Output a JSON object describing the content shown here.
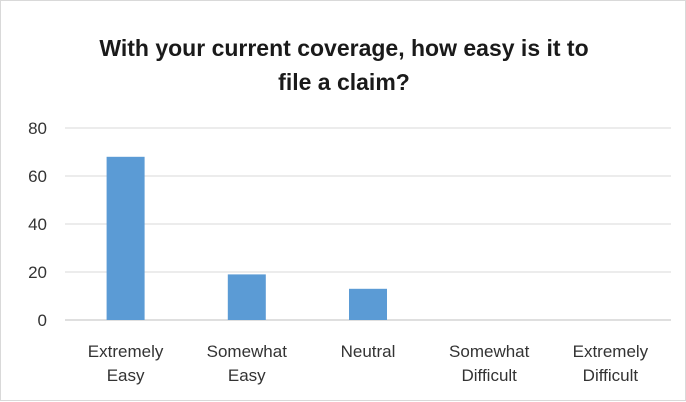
{
  "chart_data": {
    "type": "bar",
    "title": "With your current coverage, how easy is it to file a claim?",
    "xlabel": "",
    "ylabel": "",
    "categories": [
      [
        "Extremely",
        "Easy"
      ],
      [
        "Somewhat",
        "Easy"
      ],
      [
        "Neutral"
      ],
      [
        "Somewhat",
        "Difficult"
      ],
      [
        "Extremely",
        "Difficult"
      ]
    ],
    "values": [
      68,
      19,
      13,
      0,
      0
    ],
    "ylim": [
      0,
      80
    ],
    "yticks": [
      0,
      20,
      40,
      60,
      80
    ],
    "grid": true,
    "legend": "none",
    "bar_color": "#5b9bd5"
  }
}
